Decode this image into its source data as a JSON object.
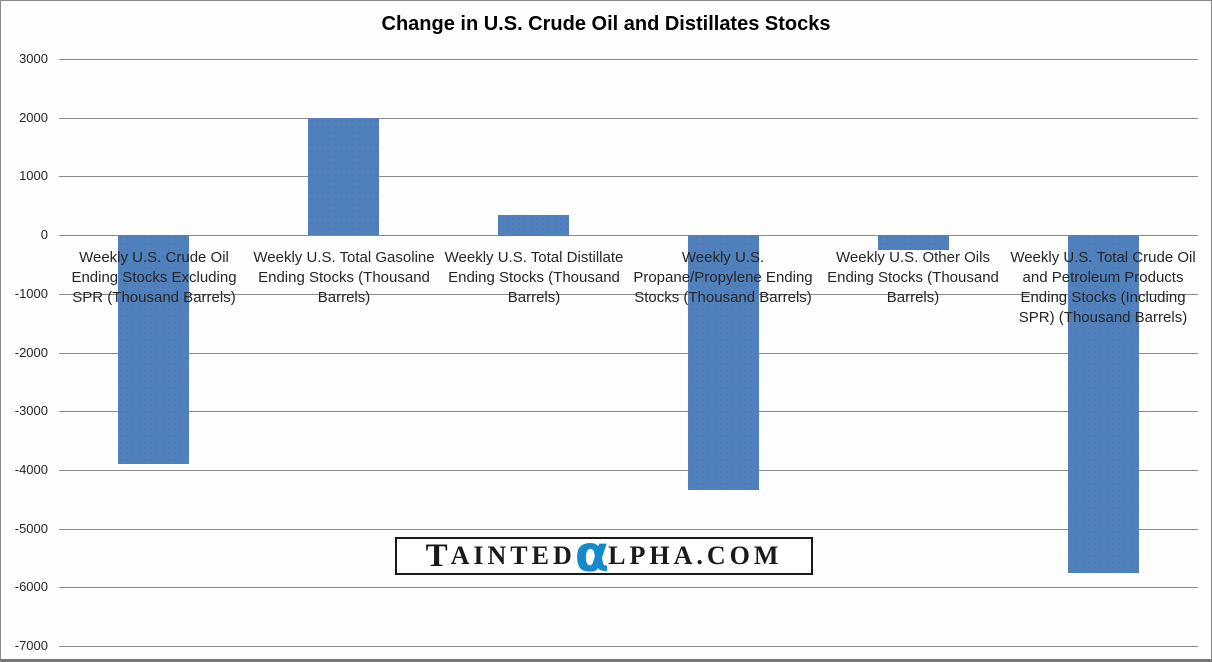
{
  "chart_data": {
    "type": "bar",
    "title": "Change in U.S. Crude Oil and Distillates Stocks",
    "categories": [
      "Weekly U.S. Crude Oil Ending Stocks Excluding SPR (Thousand Barrels)",
      "Weekly U.S. Total Gasoline Ending Stocks (Thousand Barrels)",
      "Weekly U.S. Total Distillate Ending Stocks (Thousand Barrels)",
      "Weekly U.S. Propane/Propylene Ending Stocks (Thousand Barrels)",
      "Weekly U.S. Other Oils Ending Stocks (Thousand Barrels)",
      "Weekly U.S. Total Crude Oil and Petroleum Products Ending Stocks (Including SPR) (Thousand Barrels)"
    ],
    "values": [
      -3900,
      2000,
      350,
      -4350,
      -250,
      -5750
    ],
    "xlabel": "",
    "ylabel": "",
    "ylim": [
      -7000,
      3000
    ],
    "yticks": [
      3000,
      2000,
      1000,
      0,
      -1000,
      -2000,
      -3000,
      -4000,
      -5000,
      -6000,
      -7000
    ],
    "grid": true,
    "legend": "none",
    "bar_color": "#4F81BD",
    "gridline_color": "#8a8a8a",
    "label_color": "#262626"
  },
  "watermark": {
    "text": "TAINTEDαLPHA.COM",
    "part_t": "T",
    "part_ainted": "AINTED",
    "part_alpha": "α",
    "part_rest": "LPHA.COM",
    "alpha_color": "#1589CB",
    "text_color": "#1a1a1a"
  }
}
